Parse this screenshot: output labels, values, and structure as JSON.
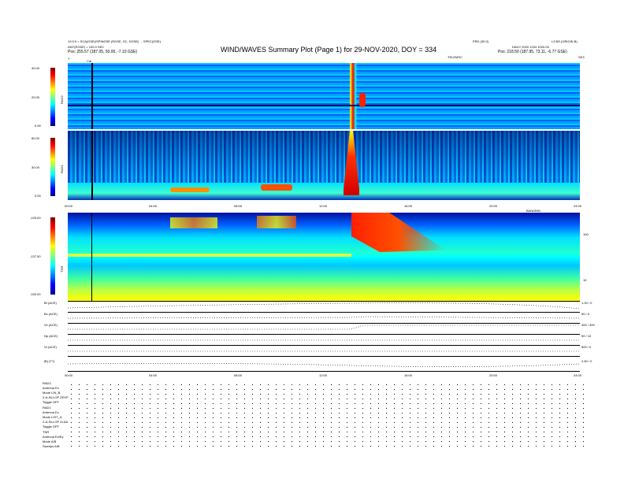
{
  "header": {
    "left_line1": "12:0:0 = SCA(GSE)/SPINGSE (RGSE, SC, DGSE) ... SPEC(GSE)",
    "left_line2": "ANY(RGSE) = 100.0 SEC",
    "left_line3": "Pos: 255.57 (187.05, 50.00, -7.10 GSE)",
    "title": "WIND/WAVES Summary Plot (Page 1) for 29-NOV-2020, DOY = 334",
    "right_top_a": "PRD (30.0)",
    "right_top_b": "L3 BS (ORIGIN B)",
    "right_line2": "DAILY 2020 1204 1020.03",
    "right_line3": "Pos: 218.50 (187.95, 73.11, -6.77 GSE)",
    "tm_label": "TELEMSC",
    "corner_left": "Y",
    "corner_right": "SK3",
    "cal_label": "Cal"
  },
  "panels": {
    "rad2": {
      "label": "RAD2",
      "ticks": [
        "40.00",
        "20.00",
        "0.00"
      ]
    },
    "rad1": {
      "label": "RAD1",
      "ticks": [
        "60.00",
        "30.00",
        "0.00"
      ]
    },
    "tnr": {
      "label": "TNR",
      "ticks": [
        "-125.00",
        "-137.50",
        "-150.00"
      ],
      "right_ticks": [
        "100",
        "10"
      ],
      "right_label": "BANDBIN"
    },
    "time_ticks": [
      "00:00",
      "04:00",
      "08:00",
      "12:00",
      "16:00",
      "20:00",
      "24:00"
    ],
    "bottom_ticks": [
      "00:00",
      "04:00",
      "08:00",
      "12:00",
      "16:00",
      "20:00",
      "24:00"
    ]
  },
  "lines": [
    {
      "label": "Bt (ACE)",
      "right": "1.00 / 0"
    },
    {
      "label": "Bx (ACE)",
      "right": "50 / 0"
    },
    {
      "label": "Vx (ACE)",
      "right": "400 / 300"
    },
    {
      "label": "Np (ACE)",
      "right": "50 / 10"
    },
    {
      "label": "Vt (ACE)",
      "right": "500 / 0"
    },
    {
      "label": "|B| (T?)",
      "right": "2.50 / 0"
    }
  ],
  "status": [
    {
      "k": "RAD2",
      "v": ""
    },
    {
      "k": "Antenna",
      "v": "Ex"
    },
    {
      "k": "Mode",
      "v": "LIN_B"
    },
    {
      "k": "Z-A-IN-LOP",
      "v": "ZEXP"
    },
    {
      "k": "Toggle",
      "v": "OFF"
    },
    {
      "k": "RAD1",
      "v": ""
    },
    {
      "k": "Antenna",
      "v": "Ex"
    },
    {
      "k": "Mode",
      "v": "LIST_A"
    },
    {
      "k": "Z-A-IN-LOP",
      "v": "ZLAA"
    },
    {
      "k": "Toggle",
      "v": "OFF"
    },
    {
      "k": "TNR",
      "v": ""
    },
    {
      "k": "Antenna",
      "v": "Ex/Ey"
    },
    {
      "k": "Mode",
      "v": "A/B"
    },
    {
      "k": "Sweeps",
      "v": "A/B"
    }
  ],
  "chart_data": {
    "type": "heatmap",
    "title": "WIND/WAVES Summary Plot (Page 1) for 29-NOV-2020, DOY = 334",
    "x_range_hours": [
      0,
      24
    ],
    "panels": [
      {
        "name": "RAD2",
        "ylim": [
          0,
          40
        ],
        "features": [
          {
            "type": "type III burst",
            "start_hour": 13.0,
            "end_hour": 13.4
          }
        ]
      },
      {
        "name": "RAD1",
        "ylim": [
          0,
          60
        ],
        "features": [
          {
            "type": "intense emission",
            "start_hour": 12.9,
            "end_hour": 14.2
          },
          {
            "type": "patchy low-frequency emission",
            "start_hour": 5.0,
            "end_hour": 12.5
          }
        ]
      },
      {
        "name": "TNR",
        "ylim": [
          -150,
          -125
        ],
        "features": [
          {
            "type": "burst drift",
            "start_hour": 13.0,
            "end_hour": 17.0
          }
        ]
      }
    ],
    "colorscale": [
      "#00008f",
      "#0000ff",
      "#00bfff",
      "#00ffff",
      "#7fff7f",
      "#ffff00",
      "#ff7f00",
      "#ff0000",
      "#7f0000"
    ]
  }
}
